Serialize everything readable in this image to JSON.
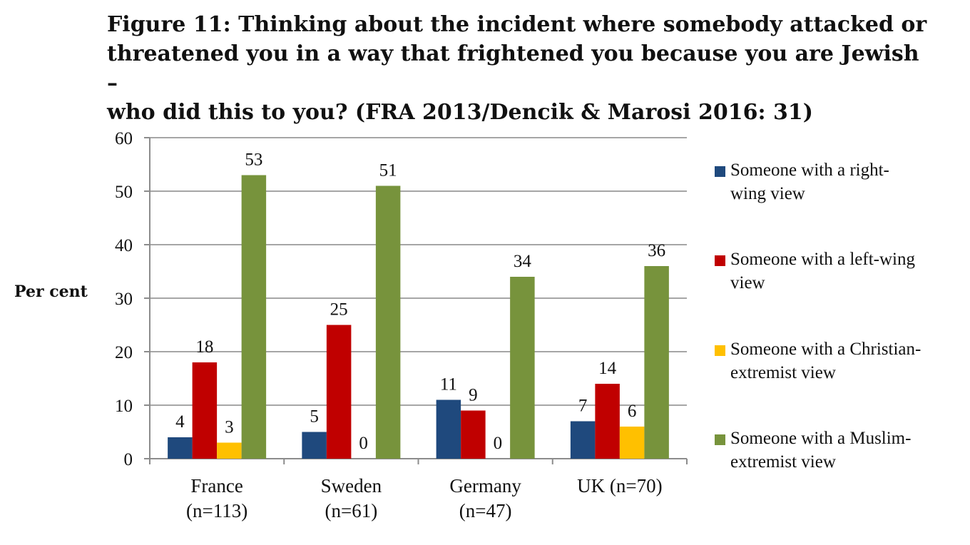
{
  "title_lines": [
    "Figure 11: Thinking about the incident where somebody attacked or",
    "threatened you in a way that frightened you because you are Jewish –",
    "who did this to you? (FRA 2013/Dencik & Marosi 2016: 31)"
  ],
  "chart_data": {
    "type": "bar",
    "title": "Figure 11: Thinking about the incident where somebody attacked or threatened you in a way that frightened you because you are Jewish – who did this to you? (FRA 2013/Dencik & Marosi 2016: 31)",
    "ylabel": "Per cent",
    "xlabel": "",
    "ylim": [
      0,
      60
    ],
    "yticks": [
      0,
      10,
      20,
      30,
      40,
      50,
      60
    ],
    "grid": true,
    "legend_position": "right",
    "categories": [
      [
        "France",
        "(n=113)"
      ],
      [
        "Sweden",
        "(n=61)"
      ],
      [
        "Germany",
        "(n=47)"
      ],
      [
        "UK (n=70)"
      ]
    ],
    "series": [
      {
        "name_lines": [
          "Someone with a right-",
          "wing view"
        ],
        "name": "Someone with a right-wing view",
        "color": "#1f497d",
        "values": [
          4,
          5,
          11,
          7
        ]
      },
      {
        "name_lines": [
          "Someone with a left-wing",
          "view"
        ],
        "name": "Someone with a left-wing view",
        "color": "#c00000",
        "values": [
          18,
          25,
          9,
          14
        ]
      },
      {
        "name_lines": [
          "Someone with a Christian-",
          "extremist view"
        ],
        "name": "Someone with a Christian-extremist view",
        "color": "#ffc000",
        "values": [
          3,
          0,
          0,
          6
        ]
      },
      {
        "name_lines": [
          "Someone with a Muslim-",
          "extremist view"
        ],
        "name": "Someone with a Muslim-extremist view",
        "color": "#77933c",
        "values": [
          53,
          51,
          34,
          36
        ]
      }
    ]
  }
}
